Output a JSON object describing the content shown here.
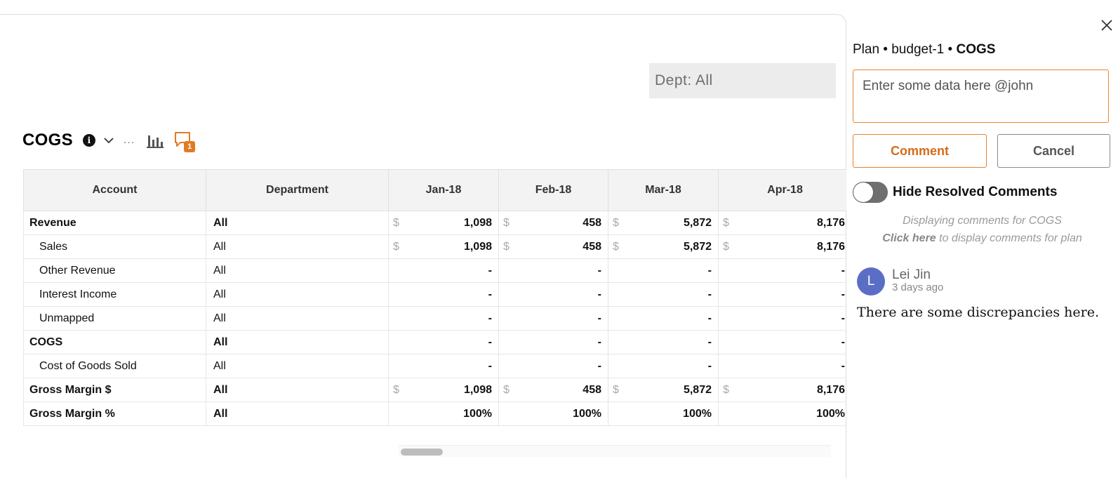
{
  "filter": {
    "dept_label": "Dept: All"
  },
  "toolbar": {
    "title": "COGS",
    "more_label": "...",
    "info_glyph": "i",
    "comment_count": "1",
    "icons": [
      "info-icon",
      "chevron-down-icon",
      "more-icon",
      "bar-chart-icon",
      "comment-icon"
    ]
  },
  "table": {
    "columns": [
      "Account",
      "Department",
      "Jan-18",
      "Feb-18",
      "Mar-18",
      "Apr-18"
    ],
    "currency_symbol": "$",
    "rows": [
      {
        "account": "Revenue",
        "department": "All",
        "values": [
          "1,098",
          "458",
          "5,872",
          "8,176"
        ],
        "currency": true,
        "bold": true
      },
      {
        "account": "Sales",
        "department": "All",
        "values": [
          "1,098",
          "458",
          "5,872",
          "8,176"
        ],
        "currency": true,
        "bold": false
      },
      {
        "account": "Other Revenue",
        "department": "All",
        "values": [
          "-",
          "-",
          "-",
          "-"
        ],
        "currency": false,
        "bold": false
      },
      {
        "account": "Interest Income",
        "department": "All",
        "values": [
          "-",
          "-",
          "-",
          "-"
        ],
        "currency": false,
        "bold": false
      },
      {
        "account": "Unmapped",
        "department": "All",
        "values": [
          "-",
          "-",
          "-",
          "-"
        ],
        "currency": false,
        "bold": false
      },
      {
        "account": "COGS",
        "department": "All",
        "values": [
          "-",
          "-",
          "-",
          "-"
        ],
        "currency": false,
        "bold": true
      },
      {
        "account": "Cost of Goods Sold",
        "department": "All",
        "values": [
          "-",
          "-",
          "-",
          "-"
        ],
        "currency": false,
        "bold": false
      },
      {
        "account": "Gross Margin $",
        "department": "All",
        "values": [
          "1,098",
          "458",
          "5,872",
          "8,176"
        ],
        "currency": true,
        "bold": true
      },
      {
        "account": "Gross Margin %",
        "department": "All",
        "values": [
          "100%",
          "100%",
          "100%",
          "100%"
        ],
        "currency": false,
        "bold": true
      }
    ]
  },
  "comments_panel": {
    "breadcrumb_prefix": "Plan • budget-1 • ",
    "breadcrumb_current": "COGS",
    "input_value": "Enter some data here @john",
    "comment_button": "Comment",
    "cancel_button": "Cancel",
    "toggle_label": "Hide Resolved Comments",
    "toggle_on": false,
    "info_line_1": "Displaying comments for COGS",
    "info_click": "Click here",
    "info_line_2_rest": " to display comments for plan",
    "comments": [
      {
        "avatar_letter": "L",
        "author": "Lei Jin",
        "time": "3 days ago",
        "text": "There are some discrepancies here."
      }
    ]
  },
  "colors": {
    "accent": "#e8822e",
    "avatar": "#5b6ec6",
    "toggle_off": "#6f6f6f",
    "header_bg": "#f3f3f3"
  }
}
